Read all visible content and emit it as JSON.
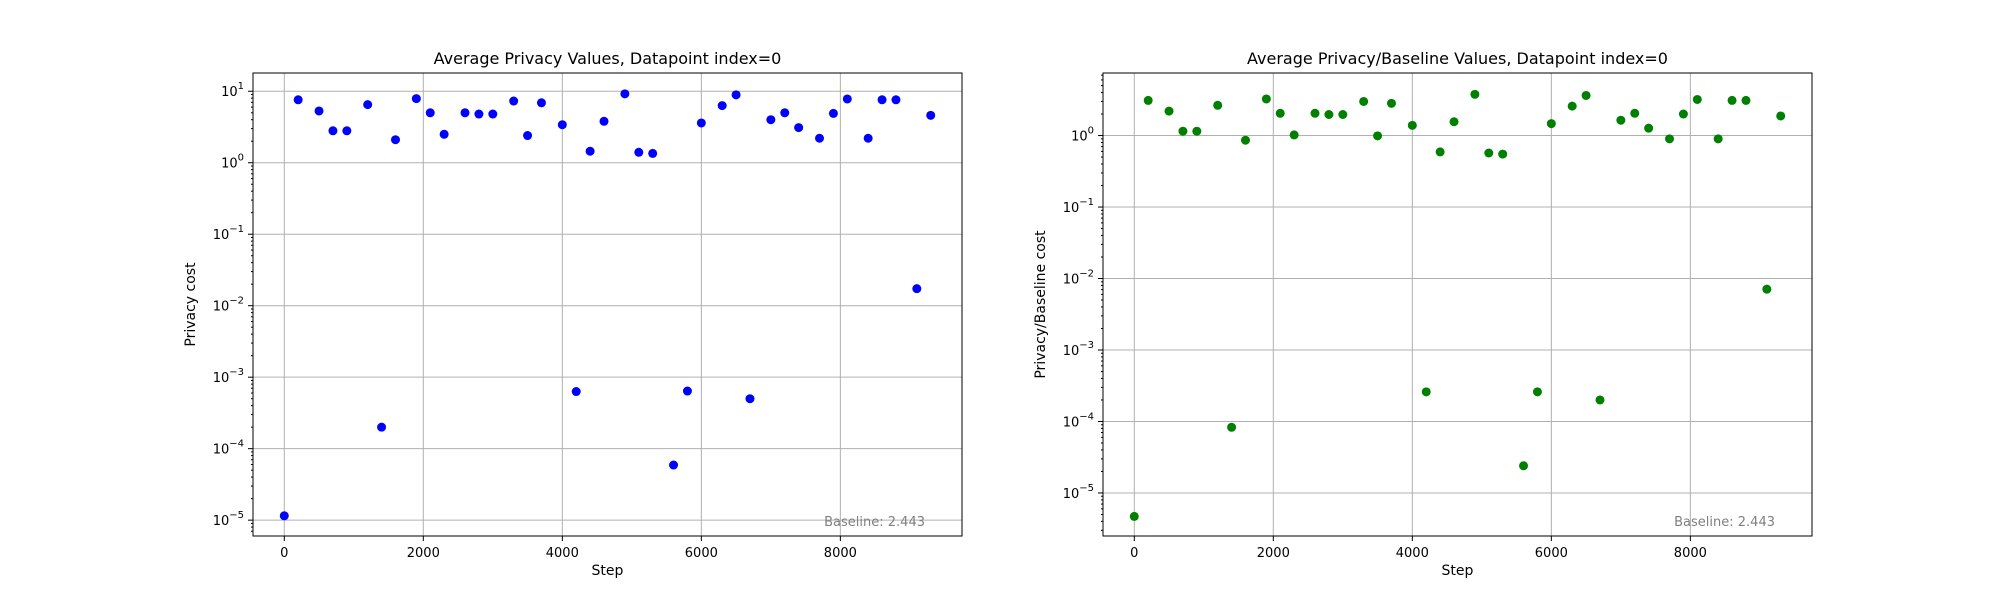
{
  "chart_data": [
    {
      "type": "scatter",
      "title": "Average Privacy Values, Datapoint index=0",
      "xlabel": "Step",
      "ylabel": "Privacy cost",
      "yscale": "log",
      "xlim": [
        -450,
        9750
      ],
      "ylim": [
        6e-06,
        18
      ],
      "xticks": [
        0,
        2000,
        4000,
        6000,
        8000
      ],
      "yticks": [
        -5,
        -4,
        -3,
        -2,
        -1,
        0,
        1
      ],
      "grid": true,
      "annotation": "Baseline: 2.443",
      "color": "#0000ff",
      "x": [
        0,
        200,
        500,
        700,
        900,
        1200,
        1400,
        1600,
        1900,
        2100,
        2300,
        2600,
        2800,
        3000,
        3300,
        3500,
        3700,
        4000,
        4200,
        4400,
        4600,
        4900,
        5100,
        5300,
        5600,
        5800,
        6000,
        6300,
        6500,
        6700,
        7000,
        7200,
        7400,
        7700,
        7900,
        8100,
        8400,
        8600,
        8800,
        9100,
        9300
      ],
      "y": [
        1.15e-05,
        7.6,
        5.3,
        2.8,
        2.8,
        6.5,
        0.0002,
        2.1,
        7.9,
        5.0,
        2.5,
        5.0,
        4.8,
        4.8,
        7.3,
        2.4,
        6.9,
        3.4,
        0.00063,
        1.45,
        3.8,
        9.2,
        1.4,
        1.35,
        5.9e-05,
        0.00064,
        3.6,
        6.3,
        8.9,
        0.0005,
        4.0,
        5.0,
        3.1,
        2.2,
        4.9,
        7.8,
        2.2,
        7.6,
        7.6,
        0.0173,
        4.6
      ]
    },
    {
      "type": "scatter",
      "title": "Average Privacy/Baseline Values, Datapoint index=0",
      "xlabel": "Step",
      "ylabel": "Privacy/Baseline cost",
      "yscale": "log",
      "xlim": [
        -450,
        9750
      ],
      "ylim": [
        2.5e-06,
        7.5
      ],
      "xticks": [
        0,
        2000,
        4000,
        6000,
        8000
      ],
      "yticks": [
        -5,
        -4,
        -3,
        -2,
        -1,
        0
      ],
      "grid": true,
      "annotation": "Baseline: 2.443",
      "color": "#008000",
      "x": [
        0,
        200,
        500,
        700,
        900,
        1200,
        1400,
        1600,
        1900,
        2100,
        2300,
        2600,
        2800,
        3000,
        3300,
        3500,
        3700,
        4000,
        4200,
        4400,
        4600,
        4900,
        5100,
        5300,
        5600,
        5800,
        6000,
        6300,
        6500,
        6700,
        7000,
        7200,
        7400,
        7700,
        7900,
        8100,
        8400,
        8600,
        8800,
        9100,
        9300
      ],
      "y": [
        4.7e-06,
        3.1,
        2.2,
        1.15,
        1.15,
        2.65,
        8.3e-05,
        0.86,
        3.25,
        2.05,
        1.02,
        2.05,
        1.97,
        1.97,
        3.0,
        0.99,
        2.82,
        1.39,
        0.00026,
        0.59,
        1.56,
        3.77,
        0.57,
        0.55,
        2.4e-05,
        0.00026,
        1.47,
        2.58,
        3.64,
        0.0002,
        1.64,
        2.05,
        1.27,
        0.9,
        2.0,
        3.2,
        0.9,
        3.1,
        3.1,
        0.0071,
        1.88
      ]
    }
  ]
}
